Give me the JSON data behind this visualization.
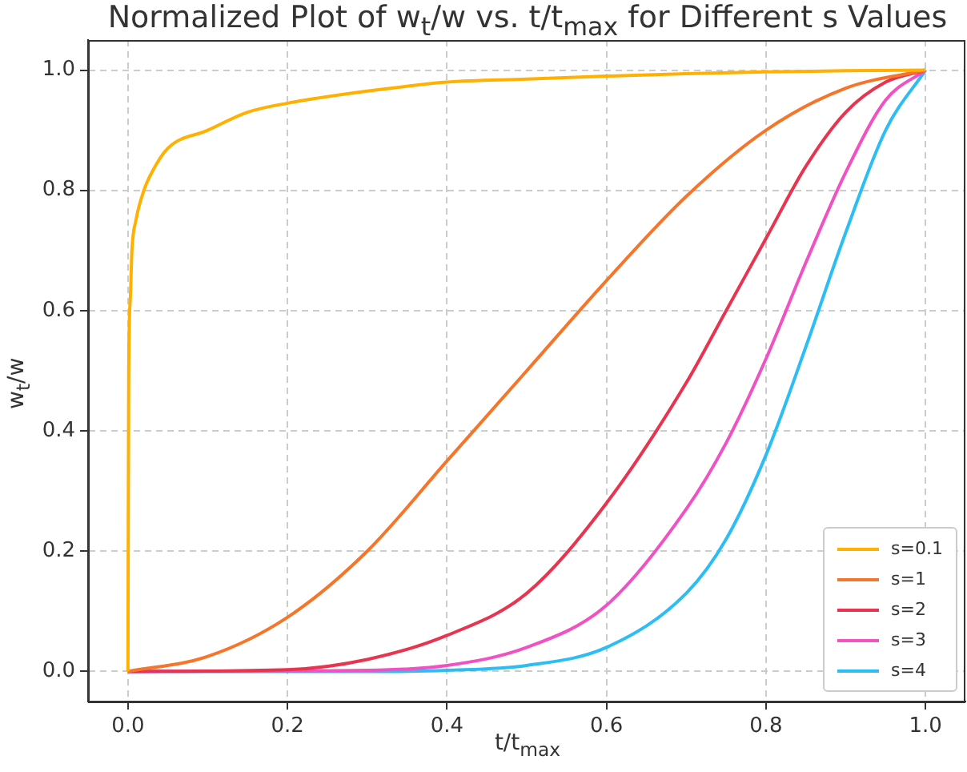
{
  "chart_data": {
    "type": "line",
    "title": "Normalized Plot of w$_{t}$/w vs. t/t$_{max}$ for Different s Values",
    "xlabel": "t/t$_{max}$",
    "ylabel": "w$_{t}$/w",
    "series": [
      {
        "name": "s=0.1",
        "color": "#ffb000",
        "x": [
          0,
          0.001,
          0.003,
          0.005,
          0.01,
          0.02,
          0.03,
          0.05,
          0.1,
          0.15,
          0.2,
          0.3,
          0.4,
          0.5,
          0.6,
          0.7,
          0.8,
          0.9,
          1
        ],
        "values": [
          0,
          0.5,
          0.62,
          0.7,
          0.75,
          0.8,
          0.83,
          0.87,
          0.9,
          0.93,
          0.945,
          0.965,
          0.98,
          0.985,
          0.99,
          0.994,
          0.997,
          0.999,
          1
        ]
      },
      {
        "name": "s=1",
        "color": "#f5762a",
        "x": [
          0,
          0.1,
          0.2,
          0.3,
          0.4,
          0.5,
          0.6,
          0.7,
          0.8,
          0.9,
          1
        ],
        "values": [
          0,
          0.025,
          0.09,
          0.2,
          0.35,
          0.5,
          0.65,
          0.79,
          0.9,
          0.97,
          1
        ]
      },
      {
        "name": "s=2",
        "color": "#e8344f",
        "x": [
          0,
          0.2,
          0.3,
          0.4,
          0.5,
          0.6,
          0.7,
          0.75,
          0.8,
          0.85,
          0.9,
          0.95,
          1
        ],
        "values": [
          0,
          0.003,
          0.02,
          0.06,
          0.13,
          0.28,
          0.48,
          0.6,
          0.72,
          0.84,
          0.93,
          0.98,
          1
        ]
      },
      {
        "name": "s=3",
        "color": "#f052c4",
        "x": [
          0,
          0.3,
          0.4,
          0.5,
          0.6,
          0.7,
          0.75,
          0.8,
          0.85,
          0.9,
          0.95,
          1
        ],
        "values": [
          0,
          0.002,
          0.01,
          0.04,
          0.11,
          0.27,
          0.38,
          0.52,
          0.68,
          0.83,
          0.95,
          1
        ]
      },
      {
        "name": "s=4",
        "color": "#2cbdf5",
        "x": [
          0,
          0.3,
          0.4,
          0.5,
          0.6,
          0.7,
          0.75,
          0.8,
          0.85,
          0.9,
          0.95,
          1
        ],
        "values": [
          0,
          0,
          0.002,
          0.01,
          0.04,
          0.13,
          0.22,
          0.36,
          0.54,
          0.73,
          0.9,
          1
        ]
      }
    ],
    "xlim": [
      -0.05,
      1.05
    ],
    "xticks": [
      {
        "value": 0,
        "label": "0.0"
      },
      {
        "value": 0.2,
        "label": "0.2"
      },
      {
        "value": 0.4,
        "label": "0.4"
      },
      {
        "value": 0.6,
        "label": "0.6"
      },
      {
        "value": 0.8,
        "label": "0.8"
      },
      {
        "value": 1,
        "label": "1.0"
      }
    ],
    "ylim": [
      -0.05,
      1.05
    ],
    "yticks": [
      {
        "value": 0,
        "label": "0.0"
      },
      {
        "value": 0.2,
        "label": "0.2"
      },
      {
        "value": 0.4,
        "label": "0.4"
      },
      {
        "value": 0.6,
        "label": "0.6"
      },
      {
        "value": 0.8,
        "label": "0.8"
      },
      {
        "value": 1,
        "label": "1.0"
      }
    ],
    "grid": true,
    "legend": "bottom right",
    "line_style": "solid",
    "marker": "none"
  }
}
